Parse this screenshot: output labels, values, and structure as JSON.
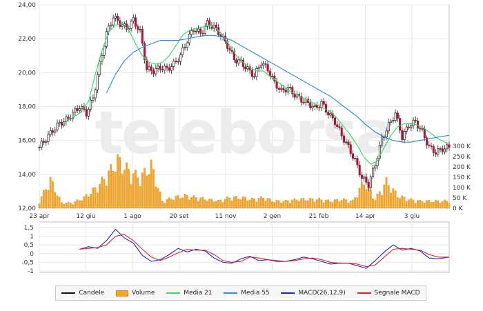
{
  "watermark": "teleborsa",
  "legend": {
    "candles": "Candele",
    "volume": "Volume",
    "ma21": "Media 21",
    "ma55": "Media 55",
    "macd": "MACD(26,12,9)",
    "signal": "Segnale MACD"
  },
  "colors": {
    "candle_up": "#222222",
    "candle_down": "#b0133a",
    "volume": "#f5a623",
    "volume_edge": "#d4821a",
    "ma21": "#33dd66",
    "ma55": "#2f8fe0",
    "macd": "#1b2aa8",
    "signal": "#e0202a",
    "grid": "#e6e6e6"
  },
  "chart_data": [
    {
      "type": "candlestick",
      "grid": true,
      "ylim": [
        12,
        24
      ],
      "y_ticks": [
        "24,00",
        "22,00",
        "20,00",
        "18,00",
        "16,00",
        "14,00",
        "12,00"
      ],
      "x_ticks": [
        "23 apr",
        "12 giu",
        "1 ago",
        "20 set",
        "11 nov",
        "2 gen",
        "21 feb",
        "14 apr",
        "3 giu"
      ],
      "close_series": [
        [
          0,
          15.6
        ],
        [
          3,
          16.1
        ],
        [
          6,
          16.6
        ],
        [
          9,
          17.0
        ],
        [
          12,
          17.2
        ],
        [
          15,
          17.6
        ],
        [
          18,
          18.0
        ],
        [
          21,
          17.6
        ],
        [
          24,
          18.5
        ],
        [
          27,
          20.5
        ],
        [
          30,
          22.3
        ],
        [
          33,
          23.3
        ],
        [
          36,
          22.9
        ],
        [
          39,
          22.6
        ],
        [
          42,
          23.1
        ],
        [
          45,
          22.4
        ],
        [
          48,
          20.2
        ],
        [
          51,
          20.1
        ],
        [
          54,
          20.3
        ],
        [
          57,
          20.2
        ],
        [
          60,
          20.5
        ],
        [
          63,
          21.0
        ],
        [
          66,
          21.9
        ],
        [
          69,
          22.6
        ],
        [
          72,
          22.3
        ],
        [
          75,
          22.9
        ],
        [
          78,
          22.7
        ],
        [
          81,
          22.2
        ],
        [
          84,
          21.6
        ],
        [
          87,
          20.8
        ],
        [
          90,
          20.6
        ],
        [
          93,
          20.2
        ],
        [
          96,
          19.8
        ],
        [
          99,
          20.6
        ],
        [
          102,
          20.2
        ],
        [
          105,
          19.4
        ],
        [
          108,
          18.9
        ],
        [
          111,
          19.1
        ],
        [
          114,
          18.7
        ],
        [
          117,
          18.4
        ],
        [
          120,
          18.2
        ],
        [
          123,
          17.9
        ],
        [
          126,
          18.2
        ],
        [
          129,
          17.6
        ],
        [
          132,
          17.1
        ],
        [
          135,
          16.3
        ],
        [
          138,
          15.6
        ],
        [
          141,
          14.8
        ],
        [
          144,
          13.8
        ],
        [
          147,
          13.4
        ],
        [
          150,
          14.6
        ],
        [
          153,
          16.1
        ],
        [
          156,
          16.9
        ],
        [
          159,
          17.6
        ],
        [
          162,
          16.2
        ],
        [
          165,
          16.9
        ],
        [
          168,
          17.1
        ],
        [
          171,
          16.5
        ],
        [
          174,
          15.6
        ],
        [
          177,
          15.3
        ],
        [
          180,
          15.5
        ],
        [
          183,
          15.6
        ]
      ],
      "ma21": [
        [
          12,
          17.1
        ],
        [
          18,
          17.6
        ],
        [
          22,
          18.3
        ],
        [
          25,
          19.9
        ],
        [
          28,
          21.3
        ],
        [
          31,
          22.4
        ],
        [
          34,
          22.8
        ],
        [
          37,
          22.9
        ],
        [
          40,
          22.5
        ],
        [
          43,
          21.7
        ],
        [
          46,
          21.0
        ],
        [
          49,
          20.6
        ],
        [
          52,
          20.5
        ],
        [
          55,
          20.6
        ],
        [
          58,
          21.0
        ],
        [
          61,
          21.6
        ],
        [
          64,
          22.2
        ],
        [
          67,
          22.5
        ],
        [
          70,
          22.6
        ],
        [
          73,
          22.7
        ],
        [
          76,
          22.8
        ],
        [
          79,
          22.6
        ],
        [
          82,
          22.2
        ],
        [
          85,
          21.6
        ],
        [
          88,
          21.0
        ],
        [
          91,
          20.6
        ],
        [
          94,
          20.3
        ],
        [
          97,
          20.1
        ],
        [
          100,
          20.1
        ],
        [
          103,
          19.8
        ],
        [
          106,
          19.5
        ],
        [
          109,
          19.2
        ],
        [
          112,
          18.9
        ],
        [
          115,
          18.7
        ],
        [
          118,
          18.5
        ],
        [
          121,
          18.3
        ],
        [
          124,
          18.1
        ],
        [
          127,
          17.9
        ],
        [
          130,
          17.7
        ],
        [
          133,
          17.3
        ],
        [
          136,
          16.8
        ],
        [
          139,
          16.3
        ],
        [
          142,
          15.7
        ],
        [
          145,
          15.0
        ],
        [
          148,
          14.6
        ],
        [
          151,
          14.8
        ],
        [
          154,
          15.6
        ],
        [
          157,
          16.3
        ],
        [
          160,
          16.8
        ],
        [
          163,
          17.0
        ],
        [
          166,
          17.0
        ],
        [
          169,
          16.9
        ],
        [
          172,
          16.7
        ],
        [
          175,
          16.4
        ],
        [
          178,
          16.1
        ],
        [
          181,
          15.9
        ],
        [
          183,
          15.8
        ]
      ],
      "ma55": [
        [
          30,
          18.8
        ],
        [
          34,
          19.9
        ],
        [
          38,
          20.7
        ],
        [
          42,
          21.2
        ],
        [
          46,
          21.5
        ],
        [
          50,
          21.7
        ],
        [
          54,
          21.9
        ],
        [
          58,
          21.9
        ],
        [
          62,
          21.9
        ],
        [
          66,
          22.0
        ],
        [
          70,
          22.1
        ],
        [
          74,
          22.2
        ],
        [
          78,
          22.2
        ],
        [
          82,
          22.1
        ],
        [
          86,
          21.9
        ],
        [
          90,
          21.6
        ],
        [
          94,
          21.3
        ],
        [
          98,
          21.0
        ],
        [
          102,
          20.7
        ],
        [
          106,
          20.4
        ],
        [
          110,
          20.1
        ],
        [
          114,
          19.8
        ],
        [
          118,
          19.5
        ],
        [
          122,
          19.2
        ],
        [
          126,
          18.9
        ],
        [
          130,
          18.6
        ],
        [
          134,
          18.2
        ],
        [
          138,
          17.8
        ],
        [
          142,
          17.4
        ],
        [
          146,
          16.9
        ],
        [
          150,
          16.5
        ],
        [
          154,
          16.2
        ],
        [
          158,
          16.0
        ],
        [
          162,
          15.9
        ],
        [
          166,
          15.9
        ],
        [
          170,
          16.0
        ],
        [
          174,
          16.1
        ],
        [
          178,
          16.2
        ],
        [
          183,
          16.3
        ]
      ]
    },
    {
      "type": "bar",
      "name": "volume",
      "ylim": [
        0,
        300
      ],
      "y_ticks": [
        "300 K",
        "250 K",
        "200 K",
        "150 K",
        "100 K",
        "50 K",
        "0 K"
      ],
      "values": [
        [
          0,
          40
        ],
        [
          5,
          160
        ],
        [
          10,
          30
        ],
        [
          15,
          30
        ],
        [
          20,
          60
        ],
        [
          25,
          110
        ],
        [
          30,
          180
        ],
        [
          35,
          270
        ],
        [
          40,
          210
        ],
        [
          45,
          170
        ],
        [
          50,
          240
        ],
        [
          55,
          40
        ],
        [
          60,
          60
        ],
        [
          65,
          70
        ],
        [
          70,
          60
        ],
        [
          75,
          50
        ],
        [
          80,
          40
        ],
        [
          85,
          60
        ],
        [
          90,
          60
        ],
        [
          95,
          50
        ],
        [
          100,
          60
        ],
        [
          105,
          40
        ],
        [
          110,
          40
        ],
        [
          115,
          50
        ],
        [
          120,
          50
        ],
        [
          125,
          50
        ],
        [
          130,
          40
        ],
        [
          135,
          50
        ],
        [
          140,
          40
        ],
        [
          145,
          150
        ],
        [
          150,
          50
        ],
        [
          155,
          150
        ],
        [
          160,
          70
        ],
        [
          165,
          50
        ],
        [
          170,
          40
        ],
        [
          175,
          40
        ],
        [
          180,
          40
        ]
      ]
    },
    {
      "type": "line",
      "name": "macd",
      "ylim": [
        -1,
        1.5
      ],
      "y_ticks": [
        "1,5",
        "1",
        "0,5",
        "0",
        "-0,5",
        "-1"
      ],
      "macd": [
        [
          18,
          0.25
        ],
        [
          22,
          0.4
        ],
        [
          26,
          0.3
        ],
        [
          30,
          0.75
        ],
        [
          34,
          1.4
        ],
        [
          38,
          0.9
        ],
        [
          42,
          0.6
        ],
        [
          46,
          -0.1
        ],
        [
          50,
          -0.45
        ],
        [
          54,
          -0.35
        ],
        [
          58,
          -0.05
        ],
        [
          62,
          0.3
        ],
        [
          66,
          0.1
        ],
        [
          70,
          0.25
        ],
        [
          74,
          0.15
        ],
        [
          78,
          -0.25
        ],
        [
          82,
          -0.5
        ],
        [
          86,
          -0.55
        ],
        [
          90,
          -0.3
        ],
        [
          94,
          -0.15
        ],
        [
          98,
          -0.4
        ],
        [
          102,
          -0.35
        ],
        [
          106,
          -0.45
        ],
        [
          110,
          -0.45
        ],
        [
          114,
          -0.35
        ],
        [
          118,
          -0.2
        ],
        [
          122,
          -0.3
        ],
        [
          126,
          -0.45
        ],
        [
          130,
          -0.6
        ],
        [
          134,
          -0.55
        ],
        [
          138,
          -0.55
        ],
        [
          142,
          -0.7
        ],
        [
          146,
          -0.85
        ],
        [
          150,
          -0.4
        ],
        [
          154,
          0.1
        ],
        [
          158,
          0.5
        ],
        [
          162,
          0.2
        ],
        [
          166,
          0.3
        ],
        [
          170,
          0.15
        ],
        [
          174,
          -0.25
        ],
        [
          178,
          -0.3
        ],
        [
          183,
          -0.2
        ]
      ],
      "signal": [
        [
          18,
          0.25
        ],
        [
          22,
          0.3
        ],
        [
          26,
          0.35
        ],
        [
          30,
          0.5
        ],
        [
          34,
          1.0
        ],
        [
          38,
          1.1
        ],
        [
          42,
          0.75
        ],
        [
          46,
          0.25
        ],
        [
          50,
          -0.2
        ],
        [
          54,
          -0.4
        ],
        [
          58,
          -0.2
        ],
        [
          62,
          0.05
        ],
        [
          66,
          0.25
        ],
        [
          70,
          0.2
        ],
        [
          74,
          0.2
        ],
        [
          78,
          -0.05
        ],
        [
          82,
          -0.4
        ],
        [
          86,
          -0.5
        ],
        [
          90,
          -0.45
        ],
        [
          94,
          -0.2
        ],
        [
          98,
          -0.25
        ],
        [
          102,
          -0.35
        ],
        [
          106,
          -0.4
        ],
        [
          110,
          -0.45
        ],
        [
          114,
          -0.4
        ],
        [
          118,
          -0.3
        ],
        [
          122,
          -0.25
        ],
        [
          126,
          -0.35
        ],
        [
          130,
          -0.5
        ],
        [
          134,
          -0.55
        ],
        [
          138,
          -0.55
        ],
        [
          142,
          -0.6
        ],
        [
          146,
          -0.75
        ],
        [
          150,
          -0.65
        ],
        [
          154,
          -0.2
        ],
        [
          158,
          0.25
        ],
        [
          162,
          0.3
        ],
        [
          166,
          0.25
        ],
        [
          170,
          0.2
        ],
        [
          174,
          -0.05
        ],
        [
          178,
          -0.2
        ],
        [
          183,
          -0.2
        ]
      ]
    }
  ]
}
